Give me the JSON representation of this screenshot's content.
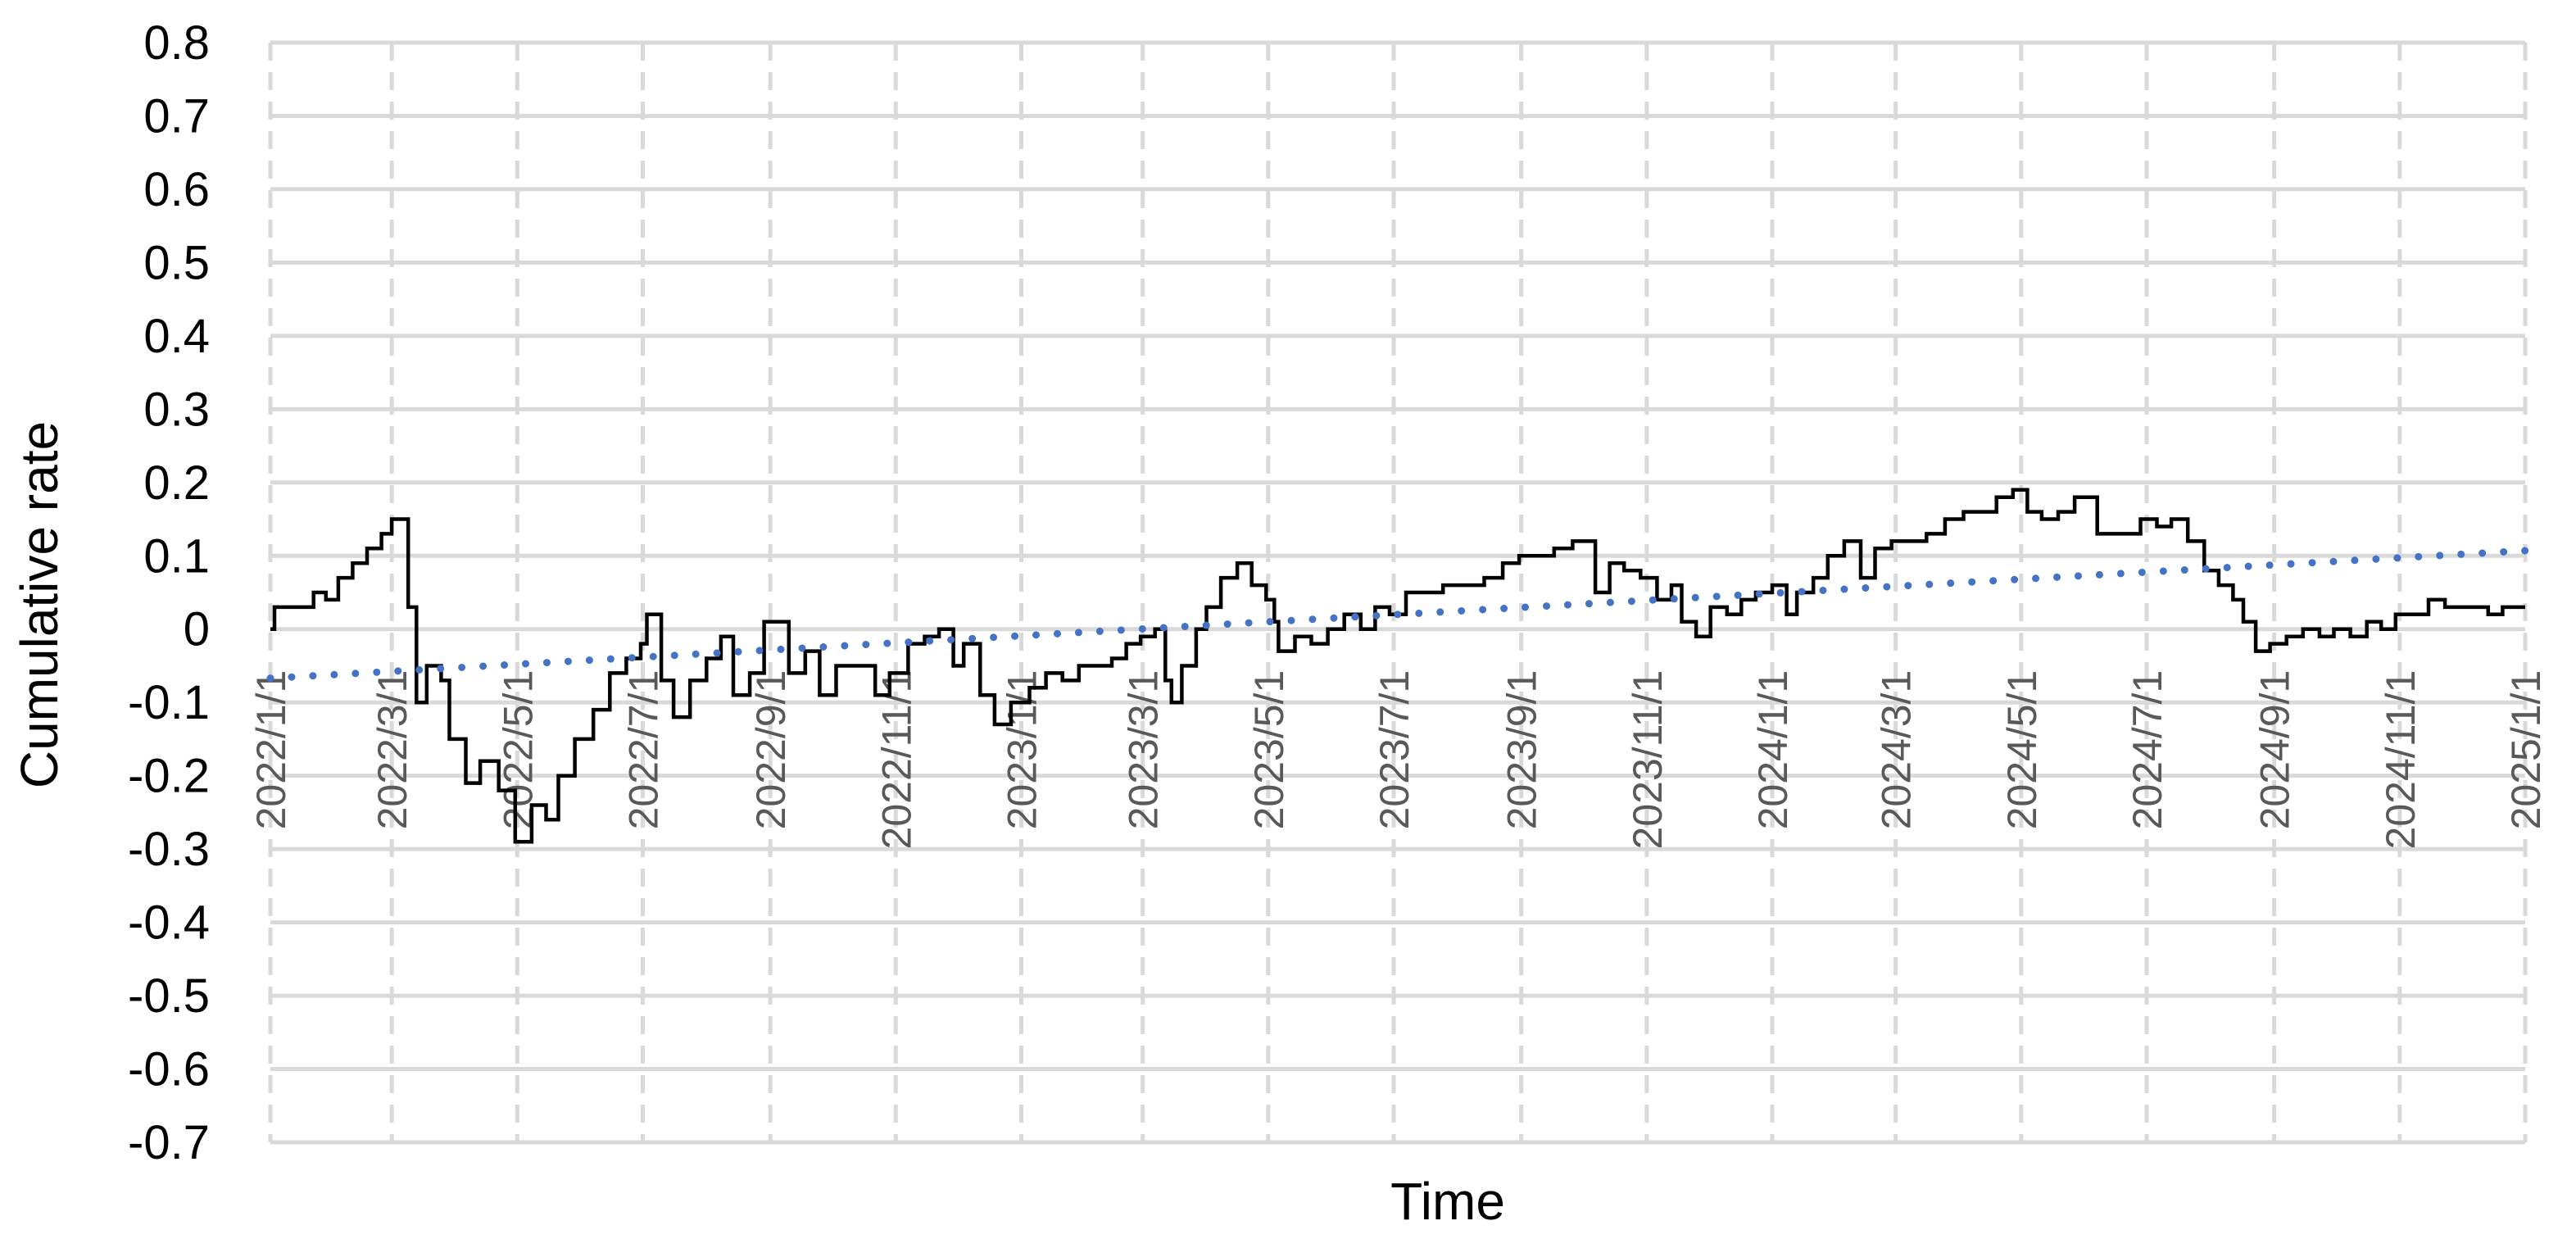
{
  "chart_data": {
    "type": "line",
    "title": "",
    "xlabel": "Time",
    "ylabel": "Cumulative rate",
    "ylim": [
      -0.7,
      0.8
    ],
    "yticks": [
      "0.8",
      "0.7",
      "0.6",
      "0.5",
      "0.4",
      "0.3",
      "0.2",
      "0.1",
      "0",
      "-0.1",
      "-0.2",
      "-0.3",
      "-0.4",
      "-0.5",
      "-0.6",
      "-0.7"
    ],
    "xticks": [
      "2022/1/1",
      "2022/3/1",
      "2022/5/1",
      "2022/7/1",
      "2022/9/1",
      "2022/11/1",
      "2023/1/1",
      "2023/3/1",
      "2023/5/1",
      "2023/7/1",
      "2023/9/1",
      "2023/11/1",
      "2024/1/1",
      "2024/3/1",
      "2024/5/1",
      "2024/7/1",
      "2024/9/1",
      "2024/11/1",
      "2025/1/1"
    ],
    "grid": true,
    "legend": "none",
    "colors": {
      "series": "#000000",
      "trend": "#4472C4",
      "grid": "#D9D9D9",
      "tick_text": "#595959"
    },
    "series": [
      {
        "type": "step-line",
        "points": [
          [
            "2022/1/1",
            0.0
          ],
          [
            "2022/1/3",
            0.03
          ],
          [
            "2022/1/20",
            0.03
          ],
          [
            "2022/1/22",
            0.05
          ],
          [
            "2022/1/28",
            0.04
          ],
          [
            "2022/2/3",
            0.07
          ],
          [
            "2022/2/10",
            0.09
          ],
          [
            "2022/2/17",
            0.11
          ],
          [
            "2022/2/24",
            0.13
          ],
          [
            "2022/3/1",
            0.15
          ],
          [
            "2022/3/6",
            0.15
          ],
          [
            "2022/3/9",
            0.03
          ],
          [
            "2022/3/13",
            -0.1
          ],
          [
            "2022/3/18",
            -0.05
          ],
          [
            "2022/3/25",
            -0.07
          ],
          [
            "2022/3/29",
            -0.15
          ],
          [
            "2022/4/6",
            -0.21
          ],
          [
            "2022/4/13",
            -0.18
          ],
          [
            "2022/4/22",
            -0.22
          ],
          [
            "2022/4/30",
            -0.29
          ],
          [
            "2022/5/8",
            -0.24
          ],
          [
            "2022/5/15",
            -0.26
          ],
          [
            "2022/5/21",
            -0.2
          ],
          [
            "2022/5/29",
            -0.15
          ],
          [
            "2022/6/7",
            -0.11
          ],
          [
            "2022/6/15",
            -0.06
          ],
          [
            "2022/6/23",
            -0.04
          ],
          [
            "2022/6/30",
            -0.02
          ],
          [
            "2022/7/3",
            0.02
          ],
          [
            "2022/7/10",
            -0.07
          ],
          [
            "2022/7/16",
            -0.12
          ],
          [
            "2022/7/24",
            -0.07
          ],
          [
            "2022/8/1",
            -0.04
          ],
          [
            "2022/8/8",
            -0.01
          ],
          [
            "2022/8/14",
            -0.09
          ],
          [
            "2022/8/22",
            -0.06
          ],
          [
            "2022/8/29",
            0.01
          ],
          [
            "2022/9/5",
            0.01
          ],
          [
            "2022/9/10",
            -0.06
          ],
          [
            "2022/9/18",
            -0.03
          ],
          [
            "2022/9/25",
            -0.09
          ],
          [
            "2022/10/3",
            -0.05
          ],
          [
            "2022/10/16",
            -0.05
          ],
          [
            "2022/10/22",
            -0.09
          ],
          [
            "2022/10/29",
            -0.06
          ],
          [
            "2022/11/7",
            -0.02
          ],
          [
            "2022/11/15",
            -0.01
          ],
          [
            "2022/11/22",
            0.0
          ],
          [
            "2022/11/29",
            -0.05
          ],
          [
            "2022/12/4",
            -0.02
          ],
          [
            "2022/12/12",
            -0.09
          ],
          [
            "2022/12/19",
            -0.13
          ],
          [
            "2022/12/27",
            -0.1
          ],
          [
            "2023/1/5",
            -0.08
          ],
          [
            "2023/1/13",
            -0.06
          ],
          [
            "2023/1/21",
            -0.07
          ],
          [
            "2023/1/29",
            -0.05
          ],
          [
            "2023/2/6",
            -0.05
          ],
          [
            "2023/2/14",
            -0.04
          ],
          [
            "2023/2/21",
            -0.02
          ],
          [
            "2023/2/28",
            -0.01
          ],
          [
            "2023/3/7",
            0.0
          ],
          [
            "2023/3/12",
            -0.07
          ],
          [
            "2023/3/15",
            -0.1
          ],
          [
            "2023/3/20",
            -0.05
          ],
          [
            "2023/3/27",
            0.0
          ],
          [
            "2023/4/1",
            0.03
          ],
          [
            "2023/4/8",
            0.07
          ],
          [
            "2023/4/16",
            0.09
          ],
          [
            "2023/4/23",
            0.06
          ],
          [
            "2023/4/30",
            0.04
          ],
          [
            "2023/5/4",
            0.01
          ],
          [
            "2023/5/6",
            -0.03
          ],
          [
            "2023/5/14",
            -0.01
          ],
          [
            "2023/5/22",
            -0.02
          ],
          [
            "2023/5/30",
            0.0
          ],
          [
            "2023/6/7",
            0.02
          ],
          [
            "2023/6/15",
            0.0
          ],
          [
            "2023/6/22",
            0.03
          ],
          [
            "2023/6/29",
            0.02
          ],
          [
            "2023/7/7",
            0.05
          ],
          [
            "2023/7/15",
            0.05
          ],
          [
            "2023/7/25",
            0.06
          ],
          [
            "2023/8/5",
            0.06
          ],
          [
            "2023/8/14",
            0.07
          ],
          [
            "2023/8/23",
            0.09
          ],
          [
            "2023/8/31",
            0.1
          ],
          [
            "2023/9/10",
            0.1
          ],
          [
            "2023/9/17",
            0.11
          ],
          [
            "2023/9/26",
            0.12
          ],
          [
            "2023/10/3",
            0.12
          ],
          [
            "2023/10/7",
            0.05
          ],
          [
            "2023/10/14",
            0.09
          ],
          [
            "2023/10/21",
            0.08
          ],
          [
            "2023/10/29",
            0.07
          ],
          [
            "2023/11/6",
            0.04
          ],
          [
            "2023/11/13",
            0.06
          ],
          [
            "2023/11/18",
            0.01
          ],
          [
            "2023/11/25",
            -0.01
          ],
          [
            "2023/12/2",
            0.03
          ],
          [
            "2023/12/10",
            0.02
          ],
          [
            "2023/12/17",
            0.04
          ],
          [
            "2023/12/24",
            0.05
          ],
          [
            "2024/1/1",
            0.06
          ],
          [
            "2024/1/8",
            0.02
          ],
          [
            "2024/1/13",
            0.05
          ],
          [
            "2024/1/21",
            0.07
          ],
          [
            "2024/1/28",
            0.1
          ],
          [
            "2024/2/5",
            0.12
          ],
          [
            "2024/2/13",
            0.07
          ],
          [
            "2024/2/20",
            0.11
          ],
          [
            "2024/2/28",
            0.12
          ],
          [
            "2024/3/8",
            0.12
          ],
          [
            "2024/3/16",
            0.13
          ],
          [
            "2024/3/25",
            0.15
          ],
          [
            "2024/4/3",
            0.16
          ],
          [
            "2024/4/11",
            0.16
          ],
          [
            "2024/4/19",
            0.18
          ],
          [
            "2024/4/27",
            0.19
          ],
          [
            "2024/5/4",
            0.16
          ],
          [
            "2024/5/11",
            0.15
          ],
          [
            "2024/5/19",
            0.16
          ],
          [
            "2024/5/27",
            0.18
          ],
          [
            "2024/6/3",
            0.18
          ],
          [
            "2024/6/7",
            0.13
          ],
          [
            "2024/6/20",
            0.13
          ],
          [
            "2024/6/28",
            0.15
          ],
          [
            "2024/7/6",
            0.14
          ],
          [
            "2024/7/13",
            0.15
          ],
          [
            "2024/7/21",
            0.12
          ],
          [
            "2024/7/29",
            0.08
          ],
          [
            "2024/8/5",
            0.06
          ],
          [
            "2024/8/12",
            0.04
          ],
          [
            "2024/8/17",
            0.01
          ],
          [
            "2024/8/23",
            -0.03
          ],
          [
            "2024/8/30",
            -0.02
          ],
          [
            "2024/9/7",
            -0.01
          ],
          [
            "2024/9/15",
            0.0
          ],
          [
            "2024/9/23",
            -0.01
          ],
          [
            "2024/9/30",
            0.0
          ],
          [
            "2024/10/8",
            -0.01
          ],
          [
            "2024/10/16",
            0.01
          ],
          [
            "2024/10/23",
            0.0
          ],
          [
            "2024/10/30",
            0.02
          ],
          [
            "2024/11/7",
            0.02
          ],
          [
            "2024/11/15",
            0.04
          ],
          [
            "2024/11/23",
            0.03
          ],
          [
            "2024/11/30",
            0.03
          ],
          [
            "2024/12/7",
            0.03
          ],
          [
            "2024/12/14",
            0.02
          ],
          [
            "2024/12/21",
            0.03
          ],
          [
            "2024/12/28",
            0.03
          ],
          [
            "2025/1/1",
            0.03
          ]
        ]
      },
      {
        "type": "trendline",
        "style": "dotted",
        "points": [
          [
            "2022/1/1",
            -0.067
          ],
          [
            "2025/1/1",
            0.107
          ]
        ]
      }
    ]
  }
}
